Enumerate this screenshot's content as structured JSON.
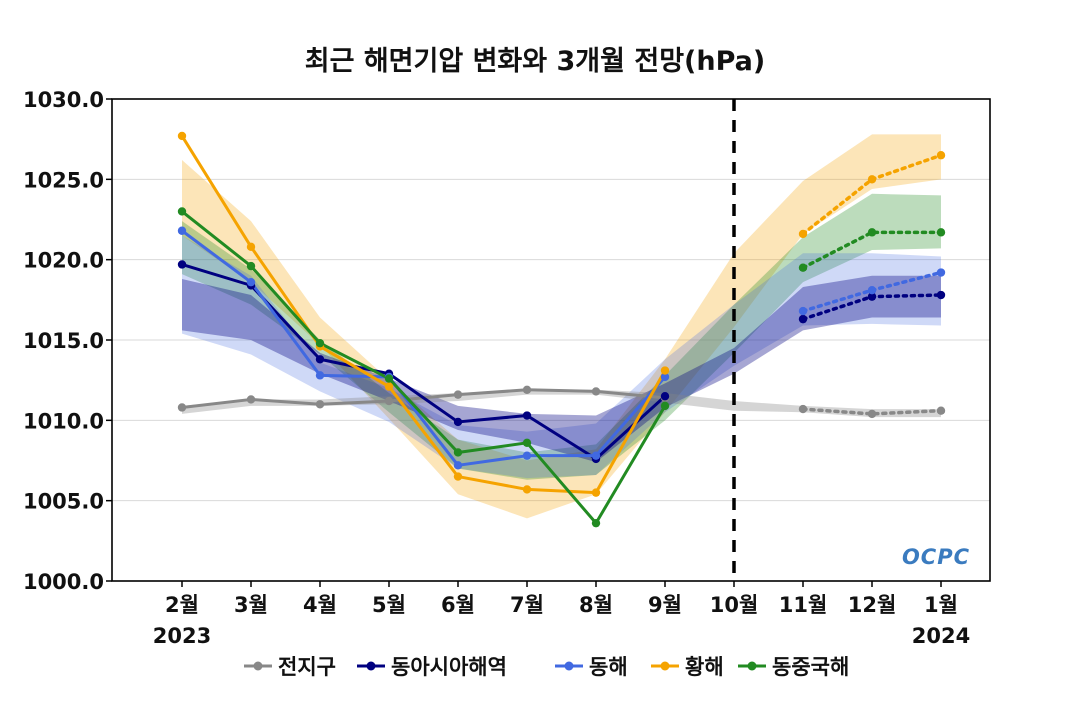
{
  "chart_data": {
    "type": "line",
    "title": "최근 해면기압 변화와 3개월 전망(hPa)",
    "categories": [
      "2월",
      "3월",
      "4월",
      "5월",
      "6월",
      "7월",
      "8월",
      "9월",
      "10월",
      "11월",
      "12월",
      "1월"
    ],
    "year_labels": {
      "start": "2023",
      "end": "2024"
    },
    "ylim": [
      1000,
      1030
    ],
    "yticks": [
      "1000.0",
      "1005.0",
      "1010.0",
      "1015.0",
      "1020.0",
      "1025.0",
      "1030.0"
    ],
    "forecast_divider_after": "10월",
    "grid": "horizontal",
    "legend_position": "bottom",
    "logo": "OCPC",
    "series": [
      {
        "name": "전지구",
        "color": "#888888",
        "observed": [
          1010.8,
          1011.3,
          1011.0,
          1011.2,
          1011.6,
          1011.9,
          1011.8,
          1011.4,
          null,
          null,
          null,
          null
        ],
        "forecast": [
          null,
          null,
          null,
          null,
          null,
          null,
          null,
          null,
          null,
          1010.7,
          1010.4,
          1010.6
        ],
        "band_upper": [
          1010.9,
          1011.3,
          1011.3,
          1011.5,
          1011.7,
          1011.9,
          1011.9,
          1011.7,
          1011.2,
          1010.9,
          1010.7,
          1010.7
        ],
        "band_lower": [
          1010.4,
          1010.9,
          1010.9,
          1011.0,
          1011.2,
          1011.6,
          1011.6,
          1011.1,
          1010.6,
          1010.5,
          1010.2,
          1010.2
        ]
      },
      {
        "name": "동아시아해역",
        "color": "#000080",
        "observed": [
          1019.7,
          1018.4,
          1013.8,
          1012.9,
          1009.9,
          1010.3,
          1007.6,
          1011.5,
          null,
          null,
          null,
          null
        ],
        "forecast": [
          null,
          null,
          null,
          null,
          null,
          null,
          null,
          null,
          null,
          1016.3,
          1017.7,
          1017.8
        ],
        "band_upper": [
          1018.8,
          1017.8,
          1014.2,
          1012.6,
          1010.9,
          1010.4,
          1010.3,
          1012.3,
          1014.5,
          1018.3,
          1019.0,
          1019.0
        ],
        "band_lower": [
          1015.6,
          1015.0,
          1012.9,
          1011.2,
          1009.4,
          1008.6,
          1007.4,
          1010.8,
          1012.9,
          1015.6,
          1016.4,
          1016.4
        ]
      },
      {
        "name": "동해",
        "color": "#4169e1",
        "observed": [
          1021.8,
          1018.6,
          1012.8,
          1012.7,
          1007.2,
          1007.8,
          1007.8,
          1012.7,
          null,
          null,
          null,
          null
        ],
        "forecast": [
          null,
          null,
          null,
          null,
          null,
          null,
          null,
          null,
          null,
          1016.8,
          1018.1,
          1019.2
        ],
        "band_upper": [
          1021.5,
          1019.0,
          1013.6,
          1012.0,
          1009.7,
          1009.3,
          1009.8,
          1013.8,
          1017.2,
          1020.4,
          1020.4,
          1020.2
        ],
        "band_lower": [
          1015.4,
          1014.1,
          1011.8,
          1009.9,
          1007.0,
          1006.4,
          1006.6,
          1010.5,
          1013.4,
          1015.9,
          1016.0,
          1015.9
        ]
      },
      {
        "name": "황해",
        "color": "#f5a300",
        "observed": [
          1027.7,
          1020.8,
          1014.6,
          1012.1,
          1006.5,
          1005.7,
          1005.5,
          1013.1,
          null,
          null,
          null,
          null
        ],
        "forecast": [
          null,
          null,
          null,
          null,
          null,
          null,
          null,
          null,
          null,
          1021.6,
          1025.0,
          1026.5
        ],
        "band_upper": [
          1026.2,
          1022.4,
          1016.4,
          1012.5,
          1008.8,
          1007.5,
          1008.2,
          1013.8,
          1020.4,
          1024.9,
          1027.8,
          1027.8
        ],
        "band_lower": [
          1021.5,
          1018.6,
          1014.7,
          1010.1,
          1005.4,
          1003.9,
          1005.4,
          1010.5,
          1015.8,
          1021.6,
          1024.4,
          1025.0
        ]
      },
      {
        "name": "동중국해",
        "color": "#228b22",
        "observed": [
          1023.0,
          1019.6,
          1014.8,
          1012.6,
          1008.0,
          1008.6,
          1003.6,
          1010.9,
          null,
          null,
          null,
          null
        ],
        "forecast": [
          null,
          null,
          null,
          null,
          null,
          null,
          null,
          null,
          null,
          1019.5,
          1021.7,
          1021.7
        ],
        "band_upper": [
          1022.4,
          1019.4,
          1015.0,
          1011.7,
          1008.8,
          1008.0,
          1008.5,
          1012.8,
          1017.2,
          1021.4,
          1024.1,
          1024.0
        ],
        "band_lower": [
          1019.1,
          1017.2,
          1014.1,
          1010.5,
          1007.0,
          1006.3,
          1006.6,
          1010.0,
          1014.2,
          1018.6,
          1020.6,
          1020.7
        ]
      }
    ]
  }
}
